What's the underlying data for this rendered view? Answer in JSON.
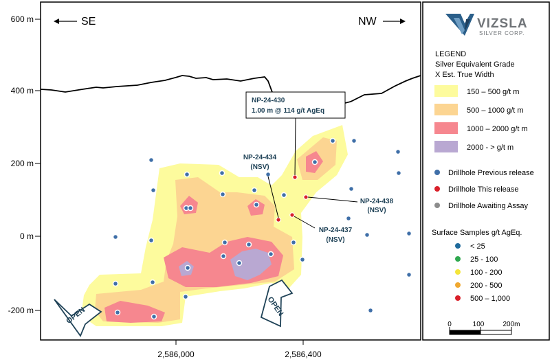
{
  "logo": {
    "name": "VIZSLA",
    "sub": "SILVER CORP."
  },
  "directions": {
    "left": "SE",
    "right": "NW"
  },
  "y_axis": {
    "ticks": [
      "600 m",
      "400 m",
      "200 m",
      "0 m",
      "-200 m"
    ]
  },
  "x_axis": {
    "ticks": [
      "2,586,000",
      "2,586,400"
    ]
  },
  "legend": {
    "title": "LEGEND",
    "subtitle1": "Silver Equivalent Grade",
    "subtitle2": "X Est. True Width",
    "grades": [
      {
        "label": "150 – 500 g/t m",
        "color": "#fdfb9d"
      },
      {
        "label": "500 – 1000 g/t m",
        "color": "#fcd592"
      },
      {
        "label": "1000 – 2000 g/t m",
        "color": "#f6878f"
      },
      {
        "label": "2000 - > g/t m",
        "color": "#b9a8d2"
      }
    ],
    "drillholes": [
      {
        "label": "Drillhole Previous release",
        "color": "#3f6fa8"
      },
      {
        "label": "Drillhole This release",
        "color": "#d9202a"
      },
      {
        "label": "Drillhole Awaiting Assay",
        "color": "#8c8c8c"
      }
    ],
    "surface_title": "Surface Samples g/t AgEq.",
    "surface": [
      {
        "label": "< 25",
        "color": "#1f6b9c"
      },
      {
        "label": "25 - 100",
        "color": "#2fa84f"
      },
      {
        "label": "100 - 200",
        "color": "#f4e53a"
      },
      {
        "label": "200 - 500",
        "color": "#f0a830"
      },
      {
        "label": "500 – 1,000",
        "color": "#d9202a"
      }
    ],
    "scale": {
      "labels": [
        "0",
        "100",
        "200m"
      ]
    }
  },
  "callouts": {
    "main": {
      "hole": "NP-24-430",
      "result": "1.00 m @ 114 g/t AgEq"
    },
    "h434": {
      "hole": "NP-24-434",
      "note": "(NSV)"
    },
    "h438": {
      "hole": "NP-24-438",
      "note": "(NSV)"
    },
    "h437": {
      "hole": "NP-24-437",
      "note": "(NSV)"
    }
  },
  "open_labels": {
    "left": "OPEN",
    "right": "OPEN"
  }
}
